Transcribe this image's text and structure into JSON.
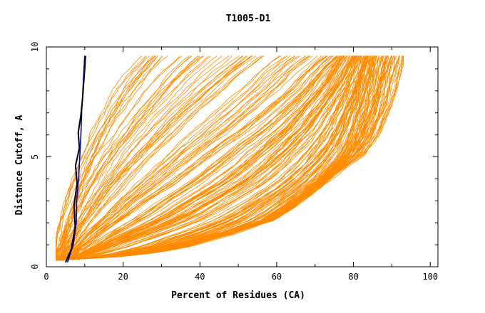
{
  "chart_data": {
    "type": "line",
    "title": "T1005-D1",
    "xlabel": "Percent of Residues (CA)",
    "ylabel": "Distance Cutoff, A",
    "xlim": [
      0,
      102
    ],
    "ylim": [
      0,
      10
    ],
    "xticks": [
      "0",
      "20",
      "40",
      "60",
      "80",
      "100"
    ],
    "yticks": [
      "0",
      "5",
      "10"
    ],
    "grid": false,
    "colors": {
      "models": "#ff8c00",
      "black": "#000000",
      "blue": "#0000cd"
    },
    "model_curves_count": 210,
    "representative_curves": [
      {
        "x": [
          2.5,
          4,
          7,
          10,
          14,
          18,
          24,
          30,
          35,
          40,
          48,
          57,
          63,
          68,
          72,
          76,
          79,
          82,
          85
        ],
        "y": [
          0.3,
          0.3,
          0.35,
          0.38,
          0.4,
          0.45,
          0.55,
          0.7,
          0.85,
          1.1,
          1.5,
          2.1,
          2.8,
          3.4,
          4.0,
          4.8,
          5.7,
          7.3,
          9.6
        ]
      },
      {
        "x": [
          4,
          7,
          11,
          16,
          22,
          30,
          38,
          45,
          52,
          58,
          63,
          68,
          72,
          76,
          80
        ],
        "y": [
          0.3,
          0.4,
          0.6,
          0.9,
          1.3,
          1.8,
          2.4,
          3.1,
          3.8,
          4.6,
          5.4,
          6.3,
          7.3,
          8.3,
          9.6
        ]
      },
      {
        "x": [
          4,
          7,
          10,
          14,
          19,
          25,
          32,
          38,
          44,
          50,
          56,
          60,
          64,
          67,
          70,
          73
        ],
        "y": [
          0.3,
          0.6,
          1.0,
          1.6,
          2.2,
          3.0,
          3.8,
          4.6,
          5.4,
          6.1,
          6.9,
          7.5,
          8.1,
          8.7,
          9.2,
          9.6
        ]
      },
      {
        "x": [
          3,
          6,
          9,
          12,
          16,
          20,
          24,
          29,
          34,
          40,
          46,
          52
        ],
        "y": [
          0.3,
          1.0,
          1.9,
          2.7,
          3.6,
          4.4,
          5.2,
          6.1,
          7.0,
          7.9,
          8.8,
          9.6
        ]
      },
      {
        "x": [
          3,
          5,
          8,
          11,
          14,
          18,
          22,
          26,
          30,
          35
        ],
        "y": [
          0.3,
          1.5,
          2.8,
          3.9,
          5.0,
          6.0,
          7.0,
          7.9,
          8.8,
          9.6
        ]
      },
      {
        "x": [
          2.5,
          5,
          7,
          10,
          13,
          16,
          19,
          23,
          26
        ],
        "y": [
          0.3,
          2.2,
          3.6,
          5.0,
          6.2,
          7.2,
          8.1,
          9.0,
          9.6
        ]
      },
      {
        "x": [
          3,
          6,
          9,
          12,
          16,
          20,
          24,
          28,
          32,
          38,
          45,
          52,
          58,
          62,
          66,
          70,
          76,
          82,
          86,
          89,
          91,
          93
        ],
        "y": [
          0.3,
          0.32,
          0.35,
          0.4,
          0.5,
          0.6,
          0.72,
          0.85,
          1.0,
          1.2,
          1.5,
          1.8,
          2.1,
          2.5,
          3.0,
          3.6,
          4.4,
          5.1,
          6.0,
          7.2,
          8.4,
          9.6
        ]
      }
    ],
    "highlight_black": {
      "x": [
        5.0,
        6.5,
        7.5,
        7.2,
        8.0,
        7.6,
        8.6,
        8.3,
        9.0,
        9.4,
        9.7,
        10.0,
        10.2
      ],
      "y": [
        0.2,
        0.8,
        1.8,
        2.8,
        3.8,
        4.6,
        5.4,
        6.1,
        6.9,
        7.6,
        8.3,
        9.0,
        9.6
      ]
    },
    "highlight_blue": {
      "x": [
        5.5,
        7.0,
        7.8,
        7.9,
        8.4,
        8.7,
        9.0,
        9.2,
        9.5,
        9.8,
        10.0
      ],
      "y": [
        0.2,
        1.0,
        2.0,
        3.0,
        4.0,
        5.0,
        6.0,
        7.0,
        8.0,
        9.0,
        9.6
      ]
    }
  }
}
